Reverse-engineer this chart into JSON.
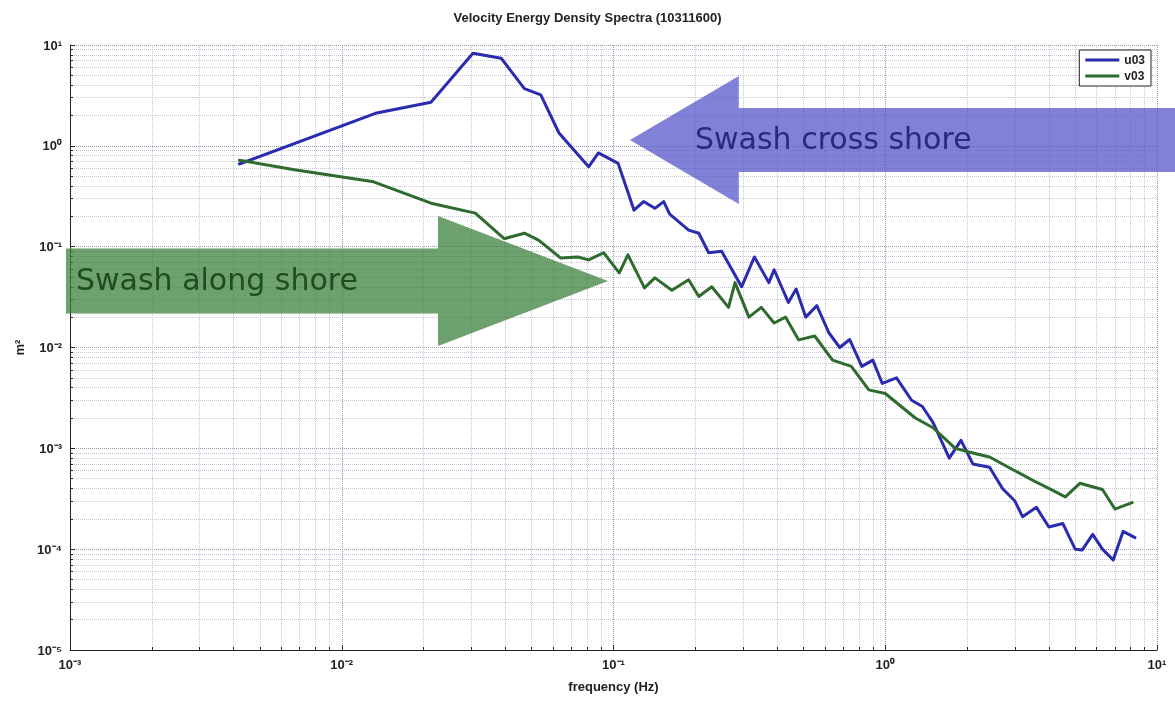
{
  "chart_data": {
    "type": "line",
    "title": "Velocity Energy Density Spectra (10311600)",
    "xlabel": "frequency (Hz)",
    "ylabel": "m²",
    "log": "xy",
    "grid": true,
    "legend": "top right",
    "marker": "none",
    "line_style": "solid",
    "xlim": [
      0.001,
      10
    ],
    "ylim": [
      1e-05,
      10
    ],
    "xticks": [
      {
        "value": 0.001,
        "label": "10⁻³"
      },
      {
        "value": 0.01,
        "label": "10⁻²"
      },
      {
        "value": 0.1,
        "label": "10⁻¹"
      },
      {
        "value": 1,
        "label": "10⁰"
      },
      {
        "value": 10,
        "label": "10¹"
      }
    ],
    "yticks": [
      {
        "value": 1e-05,
        "label": "10⁻⁵"
      },
      {
        "value": 0.0001,
        "label": "10⁻⁴"
      },
      {
        "value": 0.001,
        "label": "10⁻³"
      },
      {
        "value": 0.01,
        "label": "10⁻²"
      },
      {
        "value": 0.1,
        "label": "10⁻¹"
      },
      {
        "value": 1,
        "label": "10⁰"
      },
      {
        "value": 10,
        "label": "10¹"
      }
    ],
    "annotations": [
      "Swash cross shore",
      "Swash along shore"
    ],
    "series": [
      {
        "name": "u03",
        "color": "#2b2bb0",
        "x": [
          0.0042,
          0.0133,
          0.0213,
          0.0304,
          0.0386,
          0.047,
          0.054,
          0.063,
          0.081,
          0.088,
          0.104,
          0.119,
          0.129,
          0.142,
          0.153,
          0.161,
          0.189,
          0.206,
          0.224,
          0.25,
          0.296,
          0.33,
          0.373,
          0.39,
          0.44,
          0.47,
          0.51,
          0.56,
          0.62,
          0.68,
          0.74,
          0.82,
          0.9,
          0.975,
          1.1,
          1.25,
          1.37,
          1.5,
          1.72,
          1.9,
          2.1,
          2.42,
          2.7,
          3.0,
          3.2,
          3.6,
          4.0,
          4.5,
          5.0,
          5.3,
          5.8,
          6.3,
          6.9,
          7.5,
          8.3
        ],
        "values": [
          0.66,
          2.1,
          2.7,
          8.3,
          7.4,
          3.7,
          3.2,
          1.34,
          0.62,
          0.85,
          0.67,
          0.23,
          0.28,
          0.24,
          0.28,
          0.21,
          0.146,
          0.136,
          0.087,
          0.09,
          0.04,
          0.079,
          0.044,
          0.059,
          0.028,
          0.038,
          0.02,
          0.026,
          0.014,
          0.01,
          0.012,
          0.0065,
          0.0075,
          0.0044,
          0.005,
          0.003,
          0.0026,
          0.0018,
          0.0008,
          0.0012,
          0.0007,
          0.00065,
          0.0004,
          0.0003,
          0.00021,
          0.00026,
          0.000166,
          0.00018,
          0.0001,
          9.8e-05,
          0.00014,
          0.0001,
          7.8e-05,
          0.00015,
          0.00013
        ]
      },
      {
        "name": "v03",
        "color": "#2e6b2e",
        "x": [
          0.0042,
          0.0067,
          0.0131,
          0.0213,
          0.031,
          0.0396,
          0.047,
          0.053,
          0.064,
          0.074,
          0.081,
          0.092,
          0.105,
          0.113,
          0.13,
          0.142,
          0.164,
          0.189,
          0.206,
          0.23,
          0.265,
          0.28,
          0.315,
          0.35,
          0.39,
          0.43,
          0.48,
          0.55,
          0.64,
          0.75,
          0.87,
          1.0,
          1.29,
          1.5,
          1.81,
          2.1,
          2.42,
          3.0,
          3.5,
          4.0,
          4.6,
          5.2,
          6.3,
          7.0,
          8.1
        ],
        "values": [
          0.72,
          0.58,
          0.44,
          0.27,
          0.215,
          0.12,
          0.136,
          0.116,
          0.077,
          0.079,
          0.074,
          0.087,
          0.055,
          0.083,
          0.039,
          0.049,
          0.037,
          0.047,
          0.032,
          0.04,
          0.025,
          0.044,
          0.02,
          0.025,
          0.0175,
          0.02,
          0.0119,
          0.013,
          0.0075,
          0.0065,
          0.0038,
          0.0035,
          0.002,
          0.0016,
          0.001,
          0.0009,
          0.00082,
          0.0006,
          0.00048,
          0.0004,
          0.00033,
          0.00045,
          0.00039,
          0.00025,
          0.00029
        ]
      }
    ]
  }
}
